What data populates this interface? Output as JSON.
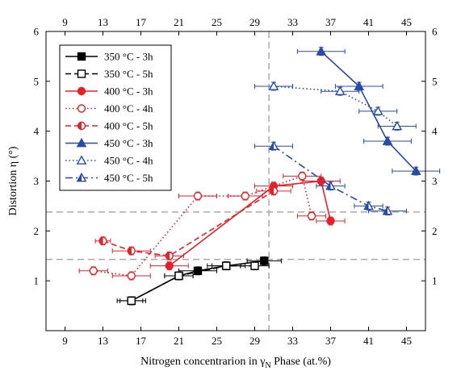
{
  "chart_data": {
    "type": "scatter",
    "xlabel": "Nitrogen concentrarion in γ",
    "xlabel_sub": "N",
    "xlabel_tail": " Phase (at.%)",
    "ylabel": "Distortion η (°)",
    "xlim": [
      7,
      47
    ],
    "ylim": [
      0,
      6
    ],
    "x_ticks": [
      9,
      13,
      17,
      21,
      25,
      29,
      33,
      37,
      41,
      45
    ],
    "top_tick_labels": [
      "9",
      "13",
      "17",
      "21",
      "25",
      "29",
      "33",
      "37",
      "41",
      "45"
    ],
    "y_ticks": [
      1,
      2,
      3,
      4,
      5,
      6
    ],
    "grid": false,
    "legend_position": "top-left",
    "reference_lines": {
      "vertical_x": 30.5,
      "horizontal_y": [
        2.38,
        1.43
      ]
    },
    "series": [
      {
        "name": "350 °C - 3h",
        "color": "#000000",
        "marker": "square",
        "fill": "full",
        "dash": "solid",
        "points": [
          {
            "x": 16,
            "y": 0.6,
            "xerr": 1.5,
            "yerr": 0.08
          },
          {
            "x": 21,
            "y": 1.1,
            "xerr": 1.5,
            "yerr": 0.08
          },
          {
            "x": 23,
            "y": 1.2,
            "xerr": 2,
            "yerr": 0.08
          },
          {
            "x": 26,
            "y": 1.3,
            "xerr": 1.5,
            "yerr": 0.08
          },
          {
            "x": 30,
            "y": 1.4,
            "xerr": 1.8,
            "yerr": 0.08
          }
        ]
      },
      {
        "name": "350 °C - 5h",
        "color": "#000000",
        "marker": "square",
        "fill": "none",
        "dash": "dashed",
        "points": [
          {
            "x": 16,
            "y": 0.6,
            "xerr": 1.2,
            "yerr": 0.08
          },
          {
            "x": 21,
            "y": 1.1,
            "xerr": 1.5,
            "yerr": 0.08
          },
          {
            "x": 26,
            "y": 1.3,
            "xerr": 2,
            "yerr": 0.08
          },
          {
            "x": 29,
            "y": 1.3,
            "xerr": 1.5,
            "yerr": 0.08
          }
        ]
      },
      {
        "name": "400 °C - 3h",
        "color": "#e8202a",
        "marker": "circle",
        "fill": "full",
        "dash": "solid",
        "points": [
          {
            "x": 20,
            "y": 1.3,
            "xerr": 2,
            "yerr": 0.08
          },
          {
            "x": 31,
            "y": 2.9,
            "xerr": 2,
            "yerr": 0.08
          },
          {
            "x": 36,
            "y": 3.0,
            "xerr": 2,
            "yerr": 0.08
          },
          {
            "x": 37,
            "y": 2.2,
            "xerr": 1.5,
            "yerr": 0.08
          }
        ]
      },
      {
        "name": "400 °C - 4h",
        "color": "#e8202a",
        "marker": "circle",
        "fill": "none",
        "dash": "dotted",
        "points": [
          {
            "x": 12,
            "y": 1.2,
            "xerr": 1.5,
            "yerr": 0.08
          },
          {
            "x": 16,
            "y": 1.1,
            "xerr": 2,
            "yerr": 0.08
          },
          {
            "x": 23,
            "y": 2.7,
            "xerr": 2,
            "yerr": 0.08
          },
          {
            "x": 28,
            "y": 2.7,
            "xerr": 1.8,
            "yerr": 0.08
          },
          {
            "x": 34,
            "y": 3.1,
            "xerr": 2,
            "yerr": 0.08
          },
          {
            "x": 35,
            "y": 2.3,
            "xerr": 1.5,
            "yerr": 0.08
          }
        ]
      },
      {
        "name": "400 °C - 5h",
        "color": "#e8202a",
        "marker": "circle",
        "fill": "half",
        "dash": "dashed",
        "points": [
          {
            "x": 13,
            "y": 1.8,
            "xerr": 0.8,
            "yerr": 0.08
          },
          {
            "x": 16,
            "y": 1.6,
            "xerr": 2,
            "yerr": 0.08
          },
          {
            "x": 20,
            "y": 1.5,
            "xerr": 1.5,
            "yerr": 0.08
          },
          {
            "x": 31,
            "y": 2.8,
            "xerr": 1.8,
            "yerr": 0.08
          }
        ]
      },
      {
        "name": "450 °C - 3h",
        "color": "#2a4aa8",
        "marker": "triangle",
        "fill": "full",
        "dash": "solid",
        "points": [
          {
            "x": 36,
            "y": 5.6,
            "xerr": 2.5,
            "yerr": 0.08
          },
          {
            "x": 40,
            "y": 4.9,
            "xerr": 2.5,
            "yerr": 0.08
          },
          {
            "x": 43,
            "y": 3.8,
            "xerr": 2.5,
            "yerr": 0.08
          },
          {
            "x": 46,
            "y": 3.2,
            "xerr": 2.5,
            "yerr": 0.08
          }
        ]
      },
      {
        "name": "450 °C - 4h",
        "color": "#2a4aa8",
        "marker": "triangle",
        "fill": "none",
        "dash": "dotted",
        "points": [
          {
            "x": 31,
            "y": 4.9,
            "xerr": 2,
            "yerr": 0.08
          },
          {
            "x": 38,
            "y": 4.8,
            "xerr": 2,
            "yerr": 0.08
          },
          {
            "x": 42,
            "y": 4.4,
            "xerr": 2,
            "yerr": 0.08
          },
          {
            "x": 44,
            "y": 4.1,
            "xerr": 2,
            "yerr": 0.08
          }
        ]
      },
      {
        "name": "450 °C - 5h",
        "color": "#2a4aa8",
        "marker": "triangle",
        "fill": "half",
        "dash": "dashdot",
        "points": [
          {
            "x": 31,
            "y": 3.7,
            "xerr": 2,
            "yerr": 0.08
          },
          {
            "x": 37,
            "y": 2.9,
            "xerr": 1.5,
            "yerr": 0.08
          },
          {
            "x": 41,
            "y": 2.5,
            "xerr": 1.5,
            "yerr": 0.08
          },
          {
            "x": 43,
            "y": 2.4,
            "xerr": 2,
            "yerr": 0.08
          }
        ]
      }
    ]
  }
}
